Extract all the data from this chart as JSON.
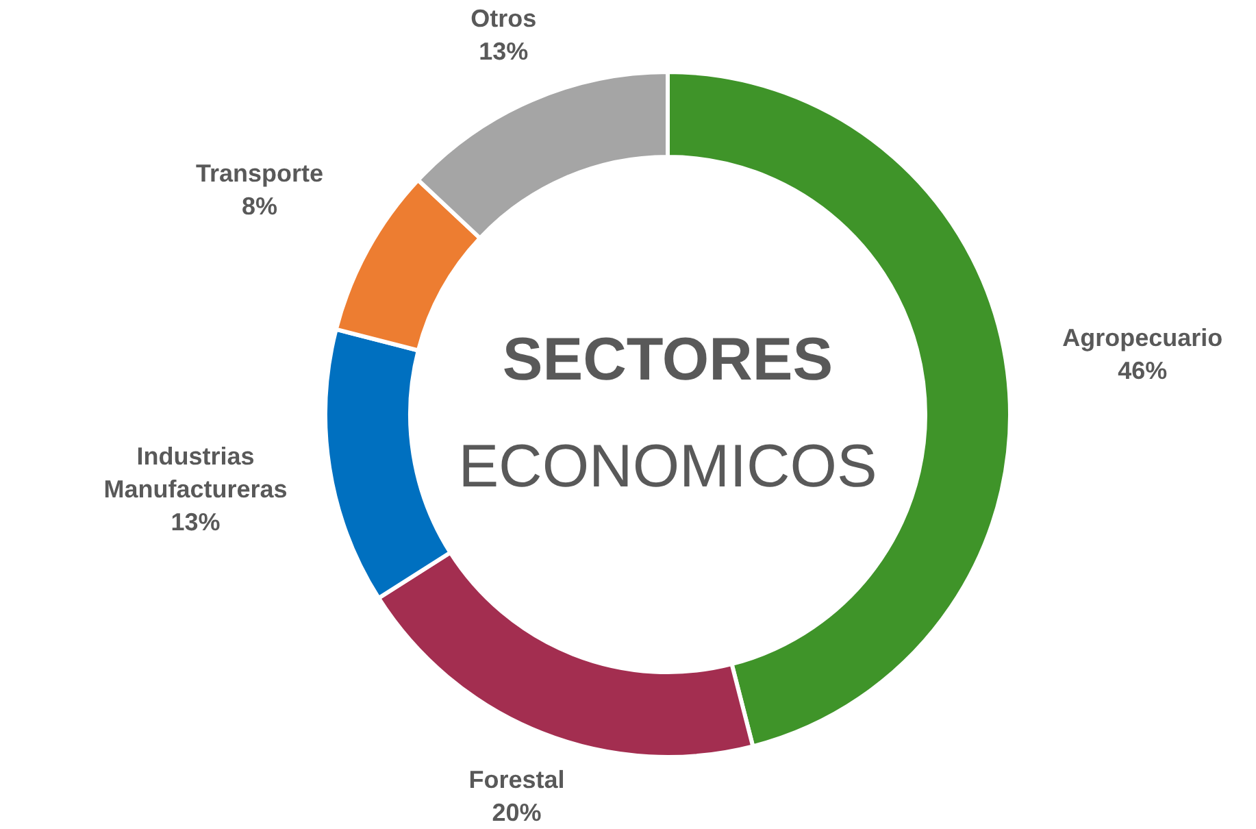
{
  "chart_data": {
    "type": "donut",
    "title": "SECTORES",
    "subtitle": "ECONOMICOS",
    "categories": [
      "Agropecuario",
      "Forestal",
      "Industrias Manufactureras",
      "Transporte",
      "Otros"
    ],
    "values": [
      46,
      20,
      13,
      8,
      13
    ],
    "value_labels": [
      "46%",
      "20%",
      "13%",
      "8%",
      "13%"
    ],
    "colors": [
      "#3f9429",
      "#a32e50",
      "#0070c0",
      "#ed7d31",
      "#a5a5a5"
    ]
  }
}
